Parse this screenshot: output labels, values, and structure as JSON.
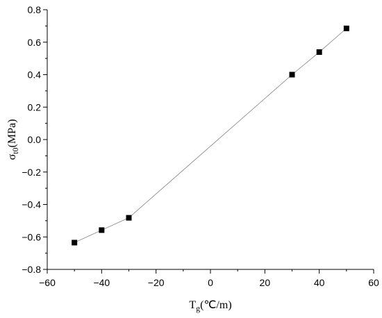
{
  "chart_data": {
    "type": "line",
    "title": "",
    "xlabel": {
      "main": "T",
      "sub": "g",
      "rest": "(℃/m)"
    },
    "ylabel": {
      "main": "σ",
      "sub": "t0",
      "rest": "(MPa)"
    },
    "xlim": [
      -60,
      60
    ],
    "ylim": [
      -0.8,
      0.8
    ],
    "xticks": [
      -60,
      -40,
      -20,
      0,
      20,
      40,
      60
    ],
    "yticks": [
      -0.8,
      -0.6,
      -0.4,
      -0.2,
      0.0,
      0.2,
      0.4,
      0.6,
      0.8
    ],
    "xtick_labels": [
      "−60",
      "−40",
      "−20",
      "0",
      "20",
      "40",
      "60"
    ],
    "ytick_labels": [
      "−0.8",
      "−0.6",
      "−0.4",
      "−0.2",
      "0.0",
      "0.2",
      "0.4",
      "0.6",
      "0.8"
    ],
    "grid": false,
    "legend": "none",
    "series": [
      {
        "x": [
          -50,
          -40,
          -30,
          30,
          40,
          50
        ],
        "y": [
          -0.635,
          -0.558,
          -0.482,
          0.4,
          0.539,
          0.685
        ],
        "marker": "square",
        "color": "#000000",
        "line_color": "#808080"
      }
    ]
  }
}
